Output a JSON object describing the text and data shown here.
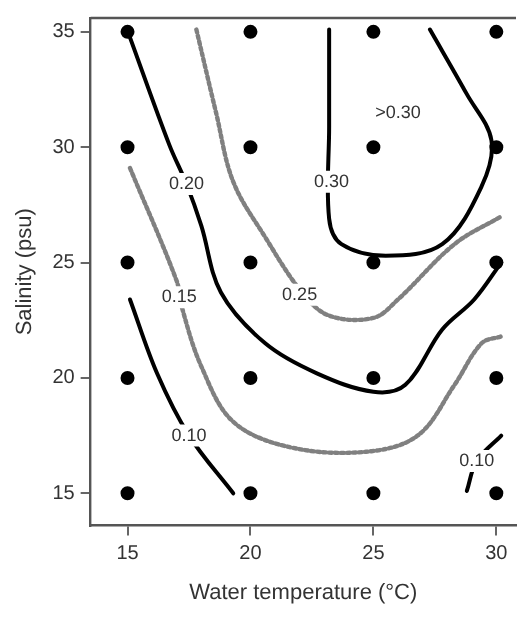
{
  "chart_data": {
    "type": "line",
    "xlabel": "Water temperature (°C)",
    "ylabel": "Salinity (psu)",
    "xlim": [
      13.5,
      30.8
    ],
    "ylim": [
      13.6,
      35.6
    ],
    "xticks": [
      15,
      20,
      25,
      30
    ],
    "yticks": [
      15,
      20,
      25,
      30,
      35
    ],
    "grid": false,
    "legend": false,
    "series": [
      {
        "type": "scatter",
        "marker": "circle",
        "color": "#000000",
        "x": [
          15,
          20,
          25,
          30,
          15,
          20,
          25,
          30,
          15,
          20,
          25,
          30,
          15,
          20,
          25,
          30,
          15,
          20,
          25,
          30
        ],
        "values": [
          35,
          35,
          35,
          35,
          30,
          30,
          30,
          30,
          25,
          25,
          25,
          25,
          20,
          20,
          20,
          20,
          15,
          15,
          15,
          15
        ]
      },
      {
        "marker": "none",
        "line_style": "solid",
        "color": "#000000",
        "x": [
          15.05,
          16.7,
          17.4,
          18.0,
          18.8,
          20.6,
          22.7,
          25.0,
          26.3,
          27.8,
          29.1,
          30.2
        ],
        "values": [
          34.9,
          30.1,
          28.4,
          26.6,
          23.7,
          21.5,
          20.2,
          19.4,
          19.7,
          22.1,
          23.4,
          25.0
        ]
      },
      {
        "marker": "none",
        "line_style": "solid",
        "color": "#000000",
        "x": [
          23.2,
          23.2,
          23.2,
          23.7,
          25.5,
          27.8,
          29.4,
          29.8,
          28.8,
          27.3
        ],
        "values": [
          35.1,
          30.9,
          26.9,
          25.8,
          25.3,
          25.8,
          28.3,
          30.3,
          32.3,
          35.1
        ]
      },
      {
        "marker": "none",
        "line_style": "dotted",
        "color": "#808080",
        "x": [
          17.8,
          18.6,
          19.3,
          20.6,
          22.1,
          23.2,
          25.0,
          26.0,
          28.3,
          30.2
        ],
        "values": [
          35.1,
          31.5,
          28.5,
          26.1,
          23.7,
          22.7,
          22.6,
          23.4,
          25.8,
          27.0
        ]
      },
      {
        "marker": "none",
        "line_style": "dotted",
        "color": "#808080",
        "x": [
          15.1,
          17.0,
          17.2,
          18.0,
          19.3,
          21.6,
          24.7,
          26.8,
          28.3,
          29.4,
          30.2
        ],
        "values": [
          29.1,
          24.2,
          23.1,
          20.5,
          18.1,
          17.0,
          16.8,
          17.5,
          19.7,
          21.5,
          21.8
        ]
      },
      {
        "marker": "none",
        "line_style": "solid",
        "color": "#000000",
        "x": [
          15.1,
          16.2,
          17.5,
          19.3
        ],
        "values": [
          23.4,
          20.2,
          17.5,
          15.0
        ]
      },
      {
        "marker": "none",
        "line_style": "solid",
        "color": "#000000",
        "x": [
          28.8,
          29.2,
          30.2
        ],
        "values": [
          15.1,
          16.4,
          17.5
        ]
      }
    ],
    "annotations": [
      {
        "text": "0.20",
        "x": 17.4,
        "y": 28.4
      },
      {
        "text": "0.30",
        "x": 23.3,
        "y": 28.5
      },
      {
        "text": ">0.30",
        "x": 26.0,
        "y": 31.5
      },
      {
        "text": "0.25",
        "x": 22.0,
        "y": 23.6
      },
      {
        "text": "0.15",
        "x": 17.1,
        "y": 23.5
      },
      {
        "text": "0.10",
        "x": 17.5,
        "y": 17.5
      },
      {
        "text": "0.10",
        "x": 29.2,
        "y": 16.4
      }
    ]
  }
}
